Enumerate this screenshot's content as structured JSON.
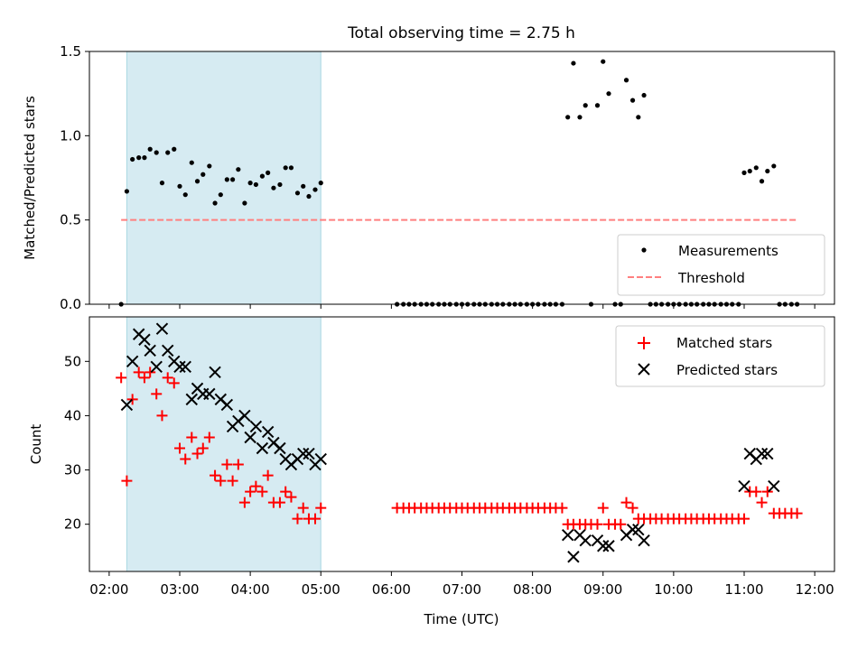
{
  "title": "Total observing time = 2.75 h",
  "chart_data": [
    {
      "type": "scatter",
      "ylabel": "Matched/Predicted stars",
      "xlabel": "",
      "xlim": [
        1.72,
        12.28
      ],
      "ylim": [
        0,
        1.5
      ],
      "yticks": [
        0.0,
        0.5,
        1.0,
        1.5
      ],
      "ytick_labels": [
        "0.0",
        "0.5",
        "1.0",
        "1.5"
      ],
      "legend_position": "lower right",
      "shaded_interval": [
        2.25,
        5.0
      ],
      "shade_color": "#add8e6",
      "series": [
        {
          "name": "Measurements",
          "marker": "dot",
          "color": "#000000",
          "points": [
            [
              2.17,
              0.0
            ],
            [
              2.25,
              0.67
            ],
            [
              2.33,
              0.86
            ],
            [
              2.42,
              0.87
            ],
            [
              2.5,
              0.87
            ],
            [
              2.58,
              0.92
            ],
            [
              2.67,
              0.9
            ],
            [
              2.75,
              0.72
            ],
            [
              2.83,
              0.9
            ],
            [
              2.92,
              0.92
            ],
            [
              3.0,
              0.7
            ],
            [
              3.08,
              0.65
            ],
            [
              3.17,
              0.84
            ],
            [
              3.25,
              0.73
            ],
            [
              3.33,
              0.77
            ],
            [
              3.42,
              0.82
            ],
            [
              3.5,
              0.6
            ],
            [
              3.58,
              0.65
            ],
            [
              3.67,
              0.74
            ],
            [
              3.75,
              0.74
            ],
            [
              3.83,
              0.8
            ],
            [
              3.92,
              0.6
            ],
            [
              4.0,
              0.72
            ],
            [
              4.08,
              0.71
            ],
            [
              4.17,
              0.76
            ],
            [
              4.25,
              0.78
            ],
            [
              4.33,
              0.69
            ],
            [
              4.42,
              0.71
            ],
            [
              4.5,
              0.81
            ],
            [
              4.58,
              0.81
            ],
            [
              4.67,
              0.66
            ],
            [
              4.75,
              0.7
            ],
            [
              4.83,
              0.64
            ],
            [
              4.92,
              0.68
            ],
            [
              5.0,
              0.72
            ],
            [
              6.08,
              0.0
            ],
            [
              6.17,
              0.0
            ],
            [
              6.25,
              0.0
            ],
            [
              6.33,
              0.0
            ],
            [
              6.42,
              0.0
            ],
            [
              6.5,
              0.0
            ],
            [
              6.58,
              0.0
            ],
            [
              6.67,
              0.0
            ],
            [
              6.75,
              0.0
            ],
            [
              6.83,
              0.0
            ],
            [
              6.92,
              0.0
            ],
            [
              7.0,
              0.0
            ],
            [
              7.08,
              0.0
            ],
            [
              7.17,
              0.0
            ],
            [
              7.25,
              0.0
            ],
            [
              7.33,
              0.0
            ],
            [
              7.42,
              0.0
            ],
            [
              7.5,
              0.0
            ],
            [
              7.58,
              0.0
            ],
            [
              7.67,
              0.0
            ],
            [
              7.75,
              0.0
            ],
            [
              7.83,
              0.0
            ],
            [
              7.92,
              0.0
            ],
            [
              8.0,
              0.0
            ],
            [
              8.08,
              0.0
            ],
            [
              8.17,
              0.0
            ],
            [
              8.25,
              0.0
            ],
            [
              8.33,
              0.0
            ],
            [
              8.42,
              0.0
            ],
            [
              8.5,
              1.11
            ],
            [
              8.58,
              1.43
            ],
            [
              8.67,
              1.11
            ],
            [
              8.75,
              1.18
            ],
            [
              8.83,
              0.0
            ],
            [
              8.92,
              1.18
            ],
            [
              9.0,
              1.44
            ],
            [
              9.08,
              1.25
            ],
            [
              9.17,
              0.0
            ],
            [
              9.25,
              0.0
            ],
            [
              9.33,
              1.33
            ],
            [
              9.42,
              1.21
            ],
            [
              9.5,
              1.11
            ],
            [
              9.58,
              1.24
            ],
            [
              9.67,
              0.0
            ],
            [
              9.75,
              0.0
            ],
            [
              9.83,
              0.0
            ],
            [
              9.92,
              0.0
            ],
            [
              10.0,
              0.0
            ],
            [
              10.08,
              0.0
            ],
            [
              10.17,
              0.0
            ],
            [
              10.25,
              0.0
            ],
            [
              10.33,
              0.0
            ],
            [
              10.42,
              0.0
            ],
            [
              10.5,
              0.0
            ],
            [
              10.58,
              0.0
            ],
            [
              10.67,
              0.0
            ],
            [
              10.75,
              0.0
            ],
            [
              10.83,
              0.0
            ],
            [
              10.92,
              0.0
            ],
            [
              11.0,
              0.78
            ],
            [
              11.08,
              0.79
            ],
            [
              11.17,
              0.81
            ],
            [
              11.25,
              0.73
            ],
            [
              11.33,
              0.79
            ],
            [
              11.42,
              0.82
            ],
            [
              11.5,
              0.0
            ],
            [
              11.58,
              0.0
            ],
            [
              11.67,
              0.0
            ],
            [
              11.75,
              0.0
            ]
          ]
        },
        {
          "name": "Threshold",
          "marker": "dashed-line",
          "color": "#ff7f7f",
          "points": [
            [
              2.17,
              0.5
            ],
            [
              11.75,
              0.5
            ]
          ]
        }
      ]
    },
    {
      "type": "scatter",
      "ylabel": "Count",
      "xlabel": "Time (UTC)",
      "xlim": [
        1.72,
        12.28
      ],
      "ylim": [
        11.3,
        58.2
      ],
      "yticks": [
        20,
        30,
        40,
        50
      ],
      "ytick_labels": [
        "20",
        "30",
        "40",
        "50"
      ],
      "xticks": [
        2,
        3,
        4,
        5,
        6,
        7,
        8,
        9,
        10,
        11,
        12
      ],
      "xtick_labels": [
        "02:00",
        "03:00",
        "04:00",
        "05:00",
        "06:00",
        "07:00",
        "08:00",
        "09:00",
        "10:00",
        "11:00",
        "12:00"
      ],
      "legend_position": "upper right",
      "shaded_interval": [
        2.25,
        5.0
      ],
      "shade_color": "#add8e6",
      "series": [
        {
          "name": "Matched stars",
          "marker": "plus",
          "color": "#ff0000",
          "points": [
            [
              2.17,
              47
            ],
            [
              2.25,
              28
            ],
            [
              2.33,
              43
            ],
            [
              2.42,
              48
            ],
            [
              2.5,
              47
            ],
            [
              2.58,
              48
            ],
            [
              2.67,
              44
            ],
            [
              2.75,
              40
            ],
            [
              2.83,
              47
            ],
            [
              2.92,
              46
            ],
            [
              3.0,
              34
            ],
            [
              3.08,
              32
            ],
            [
              3.17,
              36
            ],
            [
              3.25,
              33
            ],
            [
              3.33,
              34
            ],
            [
              3.42,
              36
            ],
            [
              3.5,
              29
            ],
            [
              3.58,
              28
            ],
            [
              3.67,
              31
            ],
            [
              3.75,
              28
            ],
            [
              3.83,
              31
            ],
            [
              3.92,
              24
            ],
            [
              4.0,
              26
            ],
            [
              4.08,
              27
            ],
            [
              4.17,
              26
            ],
            [
              4.25,
              29
            ],
            [
              4.33,
              24
            ],
            [
              4.42,
              24
            ],
            [
              4.5,
              26
            ],
            [
              4.58,
              25
            ],
            [
              4.67,
              21
            ],
            [
              4.75,
              23
            ],
            [
              4.83,
              21
            ],
            [
              4.92,
              21
            ],
            [
              5.0,
              23
            ],
            [
              6.08,
              23
            ],
            [
              6.17,
              23
            ],
            [
              6.25,
              23
            ],
            [
              6.33,
              23
            ],
            [
              6.42,
              23
            ],
            [
              6.5,
              23
            ],
            [
              6.58,
              23
            ],
            [
              6.67,
              23
            ],
            [
              6.75,
              23
            ],
            [
              6.83,
              23
            ],
            [
              6.92,
              23
            ],
            [
              7.0,
              23
            ],
            [
              7.08,
              23
            ],
            [
              7.17,
              23
            ],
            [
              7.25,
              23
            ],
            [
              7.33,
              23
            ],
            [
              7.42,
              23
            ],
            [
              7.5,
              23
            ],
            [
              7.58,
              23
            ],
            [
              7.67,
              23
            ],
            [
              7.75,
              23
            ],
            [
              7.83,
              23
            ],
            [
              7.92,
              23
            ],
            [
              8.0,
              23
            ],
            [
              8.08,
              23
            ],
            [
              8.17,
              23
            ],
            [
              8.25,
              23
            ],
            [
              8.33,
              23
            ],
            [
              8.42,
              23
            ],
            [
              8.5,
              20
            ],
            [
              8.58,
              20
            ],
            [
              8.67,
              20
            ],
            [
              8.75,
              20
            ],
            [
              8.83,
              20
            ],
            [
              8.92,
              20
            ],
            [
              9.0,
              23
            ],
            [
              9.08,
              20
            ],
            [
              9.17,
              20
            ],
            [
              9.25,
              20
            ],
            [
              9.33,
              24
            ],
            [
              9.42,
              23
            ],
            [
              9.5,
              21
            ],
            [
              9.58,
              21
            ],
            [
              9.67,
              21
            ],
            [
              9.75,
              21
            ],
            [
              9.83,
              21
            ],
            [
              9.92,
              21
            ],
            [
              10.0,
              21
            ],
            [
              10.08,
              21
            ],
            [
              10.17,
              21
            ],
            [
              10.25,
              21
            ],
            [
              10.33,
              21
            ],
            [
              10.42,
              21
            ],
            [
              10.5,
              21
            ],
            [
              10.58,
              21
            ],
            [
              10.67,
              21
            ],
            [
              10.75,
              21
            ],
            [
              10.83,
              21
            ],
            [
              10.92,
              21
            ],
            [
              11.0,
              21
            ],
            [
              11.08,
              26
            ],
            [
              11.17,
              26
            ],
            [
              11.25,
              24
            ],
            [
              11.33,
              26
            ],
            [
              11.42,
              22
            ],
            [
              11.5,
              22
            ],
            [
              11.58,
              22
            ],
            [
              11.67,
              22
            ],
            [
              11.75,
              22
            ]
          ]
        },
        {
          "name": "Predicted stars",
          "marker": "x",
          "color": "#000000",
          "points": [
            [
              2.25,
              42
            ],
            [
              2.33,
              50
            ],
            [
              2.42,
              55
            ],
            [
              2.5,
              54
            ],
            [
              2.58,
              52
            ],
            [
              2.67,
              49
            ],
            [
              2.75,
              56
            ],
            [
              2.83,
              52
            ],
            [
              2.92,
              50
            ],
            [
              3.0,
              49
            ],
            [
              3.08,
              49
            ],
            [
              3.17,
              43
            ],
            [
              3.25,
              45
            ],
            [
              3.33,
              44
            ],
            [
              3.42,
              44
            ],
            [
              3.5,
              48
            ],
            [
              3.58,
              43
            ],
            [
              3.67,
              42
            ],
            [
              3.75,
              38
            ],
            [
              3.83,
              39
            ],
            [
              3.92,
              40
            ],
            [
              4.0,
              36
            ],
            [
              4.08,
              38
            ],
            [
              4.17,
              34
            ],
            [
              4.25,
              37
            ],
            [
              4.33,
              35
            ],
            [
              4.42,
              34
            ],
            [
              4.5,
              32
            ],
            [
              4.58,
              31
            ],
            [
              4.67,
              32
            ],
            [
              4.75,
              33
            ],
            [
              4.83,
              33
            ],
            [
              4.92,
              31
            ],
            [
              5.0,
              32
            ],
            [
              8.5,
              18
            ],
            [
              8.58,
              14
            ],
            [
              8.67,
              18
            ],
            [
              8.75,
              17
            ],
            [
              8.92,
              17
            ],
            [
              9.0,
              16
            ],
            [
              9.08,
              16
            ],
            [
              9.33,
              18
            ],
            [
              9.42,
              19
            ],
            [
              9.5,
              19
            ],
            [
              9.58,
              17
            ],
            [
              11.0,
              27
            ],
            [
              11.08,
              33
            ],
            [
              11.17,
              32
            ],
            [
              11.25,
              33
            ],
            [
              11.33,
              33
            ],
            [
              11.42,
              27
            ]
          ]
        }
      ]
    }
  ]
}
